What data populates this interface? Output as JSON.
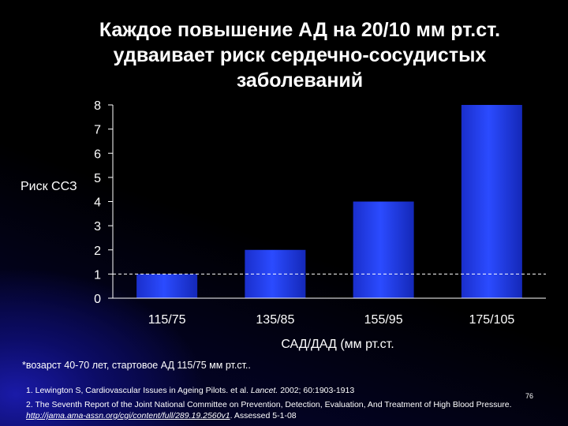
{
  "title": "Каждое повышение АД на  20/10 мм рт.ст.\nудваивает риск сердечно-сосудистых\nзаболеваний",
  "chart_data": {
    "type": "bar",
    "title": "Каждое повышение АД на  20/10 мм рт.ст. удваивает риск сердечно-сосудистых заболеваний",
    "categories": [
      "115/75",
      "135/85",
      "155/95",
      "175/105"
    ],
    "values": [
      1,
      2,
      4,
      8
    ],
    "ylabel": "Риск ССЗ",
    "xlabel": "САД/ДАД (мм рт.ст.",
    "ylim": [
      0,
      8
    ],
    "yticks": [
      "0",
      "1",
      "2",
      "3",
      "4",
      "5",
      "6",
      "7",
      "8"
    ],
    "reference_line": 1,
    "grid": false,
    "bar_color": "#2b4bff"
  },
  "footnote": "*возарст 40-70 лет, стартовое АД 115/75 мм рт.ст..",
  "references": {
    "ref1_pre": "1. Lewington S, Cardiovascular Issues in Ageing Pilots. et al. ",
    "ref1_journal": "Lancet.",
    "ref1_post": " 2002; 60:1903-1913",
    "ref2_pre": "2. The Seventh Report of the Joint National Committee on Prevention, Detection, Evaluation, And Treatment of High Blood Pressure. ",
    "ref2_link": "http://jama.ama-assn.org/cgi/content/full/289.19.2560v1",
    "ref2_post": ". Assessed 5-1-08"
  },
  "page_number": "76"
}
